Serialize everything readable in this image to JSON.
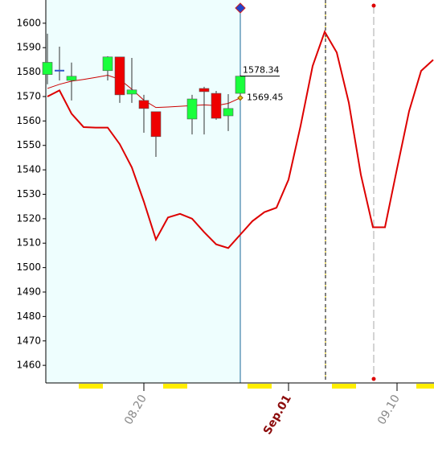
{
  "chart_data": {
    "type": "candlestick",
    "categories": [
      null,
      null,
      null,
      null,
      null,
      null,
      null,
      null,
      "08.20",
      null,
      null,
      null,
      null,
      null,
      null,
      null,
      null,
      null,
      null,
      null,
      "Sep.01",
      null,
      null,
      null,
      null,
      null,
      null,
      null,
      null,
      "09.10",
      null,
      null,
      null
    ],
    "candles": {
      "open": [
        1579,
        1580.6,
        1576.6,
        null,
        null,
        1580.6,
        1586.2,
        1571,
        1568.4,
        1563.8,
        null,
        null,
        1560.8,
        1573.3,
        1571.3,
        1562.1,
        1571.3,
        null,
        null,
        null,
        null,
        null,
        null,
        null,
        null,
        null,
        null,
        null,
        null,
        null,
        null,
        null,
        null
      ],
      "high": [
        1595.7,
        1590.4,
        1583.9,
        null,
        null,
        1586.5,
        1586.2,
        1585.8,
        1570.7,
        1563.8,
        null,
        null,
        1570.7,
        1574,
        1572.3,
        1571,
        1578.9,
        null,
        null,
        null,
        null,
        null,
        null,
        null,
        null,
        null,
        null,
        null,
        null,
        null,
        null,
        null,
        null
      ],
      "low": [
        1575,
        1576.6,
        1568.4,
        null,
        null,
        1576.6,
        1567.4,
        1567.4,
        1555.2,
        1545.3,
        null,
        null,
        1554.5,
        1554.5,
        1560.5,
        1555.9,
        1570.7,
        null,
        null,
        null,
        null,
        null,
        null,
        null,
        null,
        null,
        null,
        null,
        null,
        null,
        null,
        null,
        null
      ],
      "close": [
        1584,
        1580.6,
        1578.3,
        null,
        null,
        1586.2,
        1570.7,
        1572.7,
        1565.1,
        1553.6,
        null,
        null,
        1569,
        1572,
        1561.1,
        1565.1,
        1578.34,
        null,
        null,
        null,
        null,
        null,
        null,
        null,
        null,
        null,
        null,
        null,
        null,
        null,
        null,
        null,
        null
      ],
      "up_color": "#19ff3c",
      "down_color": "#ee0000",
      "flat_color": "#3355cc"
    },
    "lines": [
      {
        "color": "#dd0000",
        "values": [
          1570,
          1572.5,
          1563,
          1557.5,
          1557.3,
          1557.3,
          1550.5,
          1541,
          1527,
          1511.5,
          1520.5,
          1522,
          1520,
          1514.5,
          1509.5,
          1508,
          1513.5,
          1519,
          1522.7,
          1524.5,
          1536,
          1558,
          1582.5,
          1596.5,
          1588,
          1567.5,
          1538,
          1516.5,
          1516.5,
          1540.5,
          1564,
          1580.5,
          1585
        ]
      },
      {
        "color": "#cc0000",
        "values": [
          1573.3,
          1575,
          1576.3,
          1577,
          1577.8,
          1578.7,
          1577,
          1573,
          1568.5,
          1565.5,
          1565.7,
          1566,
          1566.3,
          1566.6,
          1566.3,
          1567.2,
          1569.45,
          null,
          null,
          null,
          null,
          null,
          null,
          null,
          null,
          null,
          null,
          null,
          null,
          null,
          null,
          null,
          null
        ]
      }
    ],
    "close_label": "1578.34",
    "ma_label": "1569.45",
    "ylim": [
      1452.8,
      1609.5
    ],
    "yticks": [
      1460,
      1470,
      1480,
      1490,
      1500,
      1510,
      1520,
      1530,
      1540,
      1550,
      1560,
      1570,
      1580,
      1590,
      1600
    ]
  }
}
